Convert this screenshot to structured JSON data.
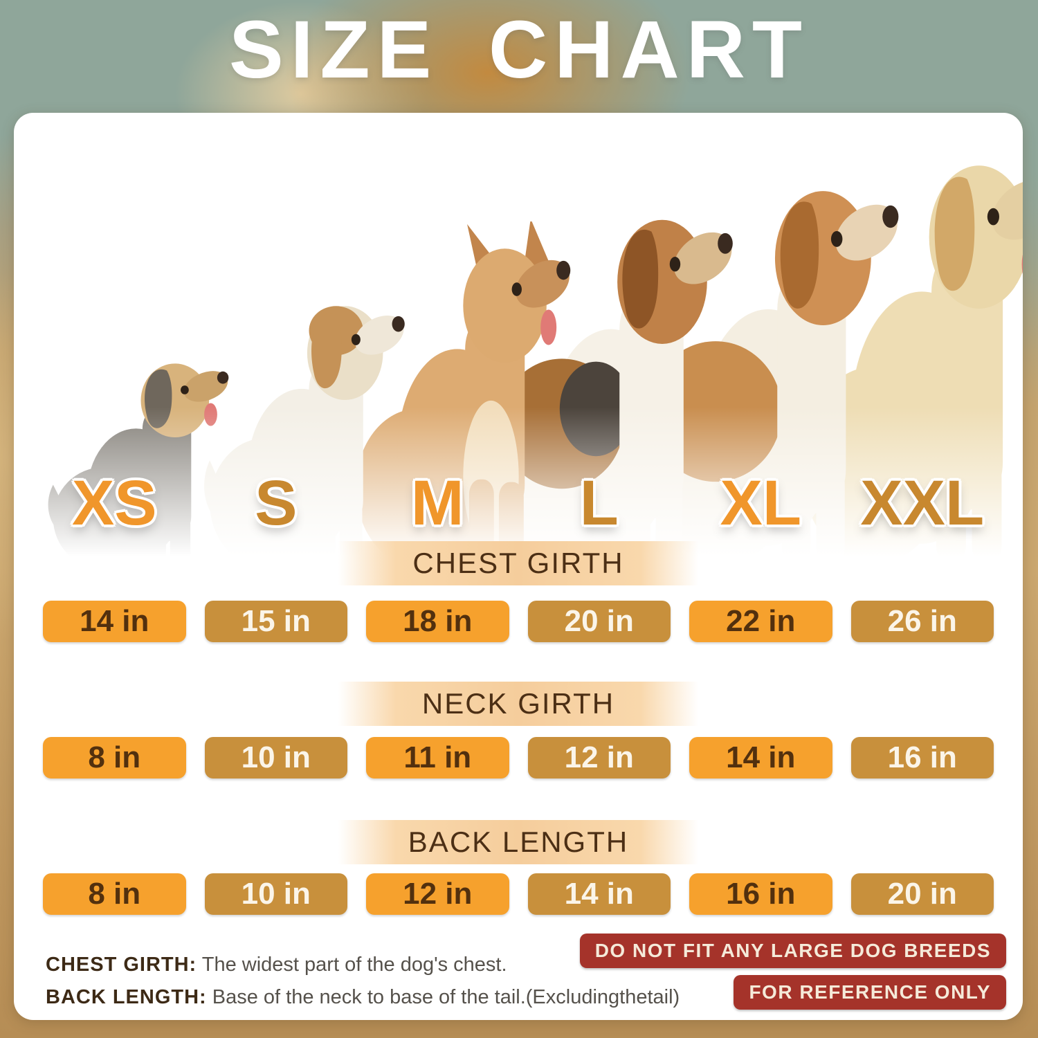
{
  "title": "SIZE CHART",
  "sizes": [
    "XS",
    "S",
    "M",
    "L",
    "XL",
    "XXL"
  ],
  "dogs": [
    {
      "size": "XS",
      "breed": "yorkshire-terrier"
    },
    {
      "size": "S",
      "breed": "jack-russell-terrier"
    },
    {
      "size": "M",
      "breed": "french-bulldog"
    },
    {
      "size": "L",
      "breed": "beagle"
    },
    {
      "size": "XL",
      "breed": "hound"
    },
    {
      "size": "XXL",
      "breed": "labrador-retriever"
    }
  ],
  "sections": [
    {
      "name": "CHEST GIRTH",
      "values": [
        "14 in",
        "15 in",
        "18 in",
        "20 in",
        "22 in",
        "26 in"
      ]
    },
    {
      "name": "NECK GIRTH",
      "values": [
        "8 in",
        "10 in",
        "11 in",
        "12 in",
        "14 in",
        "16 in"
      ]
    },
    {
      "name": "BACK LENGTH",
      "values": [
        "8 in",
        "10 in",
        "12 in",
        "14 in",
        "16 in",
        "20 in"
      ]
    }
  ],
  "notes": [
    {
      "label": "CHEST GIRTH:",
      "text": "The widest part of the dog's chest."
    },
    {
      "label": "BACK LENGTH:",
      "text": "Base of the neck to base of the tail.(Excludingthetail)"
    }
  ],
  "warnings": [
    "DO NOT FIT ANY LARGE DOG BREEDS",
    "FOR REFERENCE ONLY"
  ],
  "colors": {
    "accent_orange": "#F6A12D",
    "accent_bronze": "#C8903C",
    "header_peach": "#F9D8AC",
    "warning_red": "#A5332A",
    "text_brown": "#4A2C0F"
  },
  "chart_data": {
    "type": "table",
    "title": "SIZE CHART",
    "categories": [
      "XS",
      "S",
      "M",
      "L",
      "XL",
      "XXL"
    ],
    "series": [
      {
        "name": "CHEST GIRTH",
        "values": [
          14,
          15,
          18,
          20,
          22,
          26
        ]
      },
      {
        "name": "NECK GIRTH",
        "values": [
          8,
          10,
          11,
          12,
          14,
          16
        ]
      },
      {
        "name": "BACK LENGTH",
        "values": [
          8,
          10,
          12,
          14,
          16,
          20
        ]
      }
    ],
    "unit": "in"
  }
}
